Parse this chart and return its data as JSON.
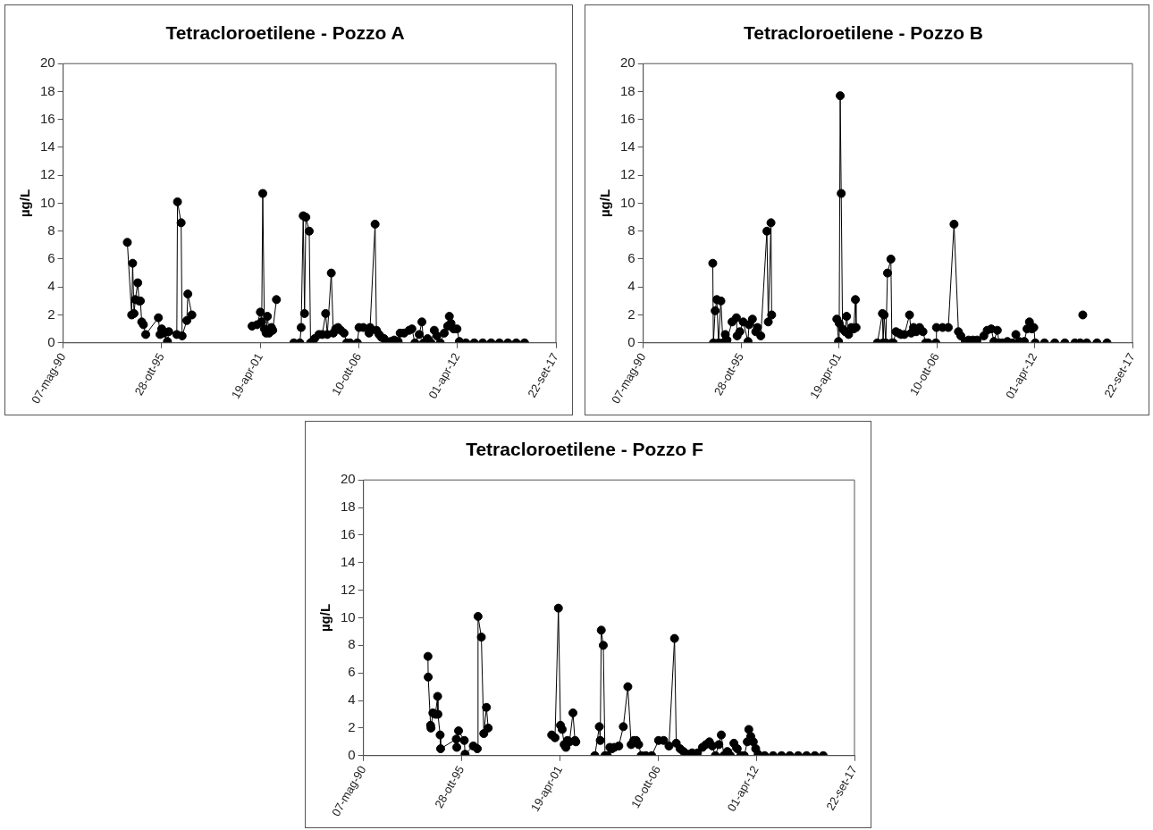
{
  "chart_data": [
    {
      "type": "line",
      "title": "Tetracloroetilene - Pozzo A",
      "ylabel": "µg/L",
      "color": "#000000",
      "marker": "circle",
      "line_style": "solid",
      "grid": false,
      "xlim": [
        "1990-05-07",
        "2017-09-22"
      ],
      "ylim": [
        0,
        20
      ],
      "yticks": [
        0,
        2,
        4,
        6,
        8,
        10,
        12,
        14,
        16,
        18,
        20
      ],
      "xticks": [
        {
          "value": "1990-05-07",
          "label": "07-mag-90"
        },
        {
          "value": "1995-10-28",
          "label": "28-ott-95"
        },
        {
          "value": "2001-04-19",
          "label": "19-apr-01"
        },
        {
          "value": "2006-10-10",
          "label": "10-ott-06"
        },
        {
          "value": "2012-04-01",
          "label": "01-apr-12"
        },
        {
          "value": "2017-09-22",
          "label": "22-set-17"
        }
      ],
      "x": [
        "1993-11-29",
        "1994-02-25",
        "1994-03-17",
        "1994-04-14",
        "1994-05-11",
        "1994-06-28",
        "1994-07-25",
        "1994-08-21",
        "1994-09-17",
        "1994-10-21",
        "1994-12-07",
        "1995-08-21",
        "1995-09-24",
        "1995-10-28",
        "1995-12-15",
        "1996-02-21",
        "1996-03-19",
        "1996-08-29",
        "1996-09-12",
        "1996-11-25",
        "1996-12-15",
        "1997-03-20",
        "1997-04-10",
        "1997-07-01",
        "1999-01-01",
        "2000-11-03",
        "2001-02-13",
        "2001-04-21",
        "2001-05-18",
        "2001-06-08",
        "2001-07-12",
        "2001-08-15",
        "2001-09-11",
        "2001-10-15",
        "2001-12-01",
        "2001-12-28",
        "2002-03-13",
        "2002-10-01",
        "2003-03-01",
        "2003-07-01",
        "2003-07-28",
        "2003-09-07",
        "2003-10-04",
        "2003-10-31",
        "2004-01-07",
        "2004-02-03",
        "2004-03-14",
        "2004-04-24",
        "2004-07-22",
        "2004-09-28",
        "2004-12-05",
        "2005-01-08",
        "2005-03-30",
        "2005-05-10",
        "2005-06-27",
        "2005-08-13",
        "2005-10-07",
        "2005-12-14",
        "2006-02-06",
        "2006-04-14",
        "2006-09-10",
        "2006-10-14",
        "2007-01-10",
        "2007-05-05",
        "2007-05-26",
        "2007-09-05",
        "2007-10-02",
        "2007-11-25",
        "2008-01-11",
        "2008-03-06",
        "2008-05-13",
        "2008-07-19",
        "2008-09-26",
        "2008-12-16",
        "2009-01-26",
        "2009-04-17",
        "2009-07-28",
        "2009-09-21",
        "2009-11-21",
        "2010-02-17",
        "2010-04-12",
        "2010-05-16",
        "2010-08-05",
        "2010-10-12",
        "2010-12-19",
        "2011-02-11",
        "2011-04-20",
        "2011-07-10",
        "2011-09-16",
        "2011-10-20",
        "2011-11-23",
        "2012-01-16",
        "2012-03-24",
        "2012-05-11",
        "2012-09-20",
        "2013-03-10",
        "2013-08-28",
        "2014-02-14",
        "2014-08-03",
        "2015-01-20",
        "2015-07-09",
        "2015-12-25"
      ],
      "values": [
        7.2,
        2.0,
        5.7,
        2.1,
        3.1,
        4.3,
        3.0,
        3.0,
        1.5,
        1.3,
        0.6,
        1.8,
        0.6,
        1.0,
        0.7,
        0.1,
        0.8,
        0.6,
        10.1,
        8.6,
        0.5,
        1.6,
        3.5,
        2.0,
        null,
        1.2,
        1.3,
        2.2,
        1.5,
        10.7,
        1.0,
        0.7,
        1.9,
        0.7,
        1.1,
        0.9,
        3.1,
        null,
        0,
        0,
        1.1,
        9.1,
        2.1,
        9.0,
        8.0,
        0,
        0.1,
        0.3,
        0.6,
        0.6,
        2.1,
        0.6,
        5.0,
        0.7,
        1.0,
        1.1,
        0.9,
        0.7,
        0,
        0,
        0,
        1.1,
        1.1,
        0.7,
        1.1,
        8.5,
        0.9,
        0.6,
        0.4,
        0.3,
        0,
        0.1,
        0.2,
        0.1,
        0.7,
        0.7,
        0.9,
        1.0,
        0,
        0.6,
        1.5,
        0,
        0.3,
        0,
        0.9,
        0.5,
        0,
        0.7,
        1.2,
        1.9,
        1.4,
        1.0,
        1.0,
        0.1,
        0,
        0,
        0,
        0,
        0,
        0,
        0,
        0
      ]
    },
    {
      "type": "line",
      "title": "Tetracloroetilene - Pozzo B",
      "ylabel": "µg/L",
      "color": "#000000",
      "marker": "circle",
      "line_style": "solid",
      "grid": false,
      "xlim": [
        "1990-05-07",
        "2017-09-22"
      ],
      "ylim": [
        0,
        20
      ],
      "yticks": [
        0,
        2,
        4,
        6,
        8,
        10,
        12,
        14,
        16,
        18,
        20
      ],
      "xticks": [
        {
          "value": "1990-05-07",
          "label": "07-mag-90"
        },
        {
          "value": "1995-10-28",
          "label": "28-ott-95"
        },
        {
          "value": "2001-04-19",
          "label": "19-apr-01"
        },
        {
          "value": "2006-10-10",
          "label": "10-ott-06"
        },
        {
          "value": "2012-04-01",
          "label": "01-apr-12"
        },
        {
          "value": "2017-09-22",
          "label": "22-set-17"
        }
      ],
      "x": [
        "1994-03-28",
        "1994-04-10",
        "1994-05-16",
        "1994-06-19",
        "1994-07-24",
        "1994-09-10",
        "1994-10-22",
        "1994-12-09",
        "1995-01-13",
        "1995-04-26",
        "1995-07-25",
        "1995-08-08",
        "1995-10-02",
        "1995-12-10",
        "1996-03-17",
        "1996-04-07",
        "1996-06-15",
        "1996-08-23",
        "1996-09-27",
        "1996-12-04",
        "1997-04-08",
        "1997-05-06",
        "1997-06-30",
        "1997-07-14",
        "1999-01-01",
        "2001-03-07",
        "2001-04-11",
        "2001-04-25",
        "2001-05-15",
        "2001-06-05",
        "2001-07-02",
        "2001-08-26",
        "2001-09-23",
        "2001-11-03",
        "2001-12-29",
        "2002-02-16",
        "2002-03-22",
        "2002-04-05",
        "2002-10-01",
        "2003-06-14",
        "2003-09-25",
        "2003-10-09",
        "2003-10-30",
        "2003-12-03",
        "2004-01-07",
        "2004-03-16",
        "2004-04-06",
        "2004-05-04",
        "2004-06-28",
        "2004-08-22",
        "2004-10-10",
        "2004-12-18",
        "2005-04-01",
        "2005-05-05",
        "2005-06-22",
        "2005-08-16",
        "2005-10-24",
        "2006-01-01",
        "2006-02-25",
        "2006-04-15",
        "2006-09-21",
        "2006-10-04",
        "2007-02-06",
        "2007-06-03",
        "2007-09-28",
        "2007-12-27",
        "2008-02-14",
        "2008-05-14",
        "2008-07-22",
        "2008-10-20",
        "2009-01-11",
        "2009-05-29",
        "2009-08-06",
        "2009-10-27",
        "2009-12-22",
        "2010-03-01",
        "2010-04-05",
        "2010-06-13",
        "2010-09-24",
        "2011-01-05",
        "2011-03-15",
        "2011-05-23",
        "2011-09-04",
        "2011-10-29",
        "2011-12-17",
        "2012-02-03",
        "2012-03-16",
        "2012-04-13",
        "2012-10-20",
        "2013-05-18",
        "2013-12-10",
        "2014-07-05",
        "2014-10-20",
        "2014-11-25",
        "2014-12-12",
        "2014-12-30",
        "2015-03-03",
        "2015-09-27",
        "2016-04-20"
      ],
      "values": [
        5.7,
        0,
        2.3,
        3.1,
        0,
        3.0,
        0,
        0.6,
        0.2,
        1.5,
        1.8,
        0.5,
        0.8,
        1.5,
        0.1,
        1.3,
        1.7,
        0.8,
        1.1,
        0.5,
        8.0,
        1.5,
        8.6,
        2.0,
        null,
        1.7,
        0.1,
        1.4,
        17.7,
        10.7,
        1.0,
        0.8,
        1.9,
        0.6,
        1.1,
        1.0,
        3.1,
        1.1,
        null,
        0,
        2.1,
        0,
        2.0,
        0,
        5.0,
        6.0,
        0,
        0,
        0.8,
        0.7,
        0.6,
        0.6,
        2.0,
        0.7,
        1.1,
        0.8,
        1.1,
        0.8,
        0,
        0,
        0,
        1.1,
        1.1,
        1.1,
        8.5,
        0.8,
        0.5,
        0.1,
        0.2,
        0.2,
        0.2,
        0.5,
        0.9,
        1.0,
        0.1,
        0.9,
        0,
        0,
        0.1,
        0,
        0.6,
        0.1,
        0.1,
        1.0,
        1.5,
        1.0,
        1.1,
        0,
        0,
        0,
        0,
        0,
        0,
        null,
        2.0,
        null,
        0,
        0,
        0
      ]
    },
    {
      "type": "line",
      "title": "Tetracloroetilene - Pozzo F",
      "ylabel": "µg/L",
      "color": "#000000",
      "marker": "circle",
      "line_style": "solid",
      "grid": false,
      "xlim": [
        "1990-05-07",
        "2017-09-22"
      ],
      "ylim": [
        0,
        20
      ],
      "yticks": [
        0,
        2,
        4,
        6,
        8,
        10,
        12,
        14,
        16,
        18,
        20
      ],
      "xticks": [
        {
          "value": "1990-05-07",
          "label": "07-mag-90"
        },
        {
          "value": "1995-10-28",
          "label": "28-ott-95"
        },
        {
          "value": "2001-04-19",
          "label": "19-apr-01"
        },
        {
          "value": "2006-10-10",
          "label": "10-ott-06"
        },
        {
          "value": "2012-04-01",
          "label": "01-apr-12"
        },
        {
          "value": "2017-09-22",
          "label": "22-set-17"
        }
      ],
      "x": [
        "1993-12-10",
        "1993-12-15",
        "1994-02-01",
        "1994-02-10",
        "1994-03-20",
        "1994-05-11",
        "1994-06-25",
        "1994-07-01",
        "1994-08-15",
        "1994-08-25",
        "1995-07-10",
        "1995-07-20",
        "1995-08-25",
        "1995-12-20",
        "1996-01-05",
        "1996-06-20",
        "1996-09-10",
        "1996-09-25",
        "1996-12-01",
        "1997-01-20",
        "1997-03-15",
        "1997-04-20",
        "1999-01-01",
        "2000-11-03",
        "2001-01-10",
        "2001-03-20",
        "2001-05-01",
        "2001-06-05",
        "2001-07-15",
        "2001-08-20",
        "2001-09-20",
        "2001-11-01",
        "2002-01-10",
        "2002-02-20",
        "2002-03-10",
        "2002-10-01",
        "2003-04-01",
        "2003-07-01",
        "2003-07-20",
        "2003-08-10",
        "2003-09-20",
        "2003-10-25",
        "2003-12-10",
        "2004-02-01",
        "2004-03-14",
        "2004-05-01",
        "2004-08-01",
        "2004-11-01",
        "2005-02-01",
        "2005-04-10",
        "2005-06-01",
        "2005-07-20",
        "2005-09-10",
        "2005-11-01",
        "2006-02-01",
        "2006-06-01",
        "2006-10-20",
        "2007-02-01",
        "2007-05-20",
        "2007-09-10",
        "2007-10-15",
        "2008-01-01",
        "2008-03-10",
        "2008-06-01",
        "2008-09-01",
        "2008-12-20",
        "2009-04-01",
        "2009-06-10",
        "2009-08-20",
        "2009-10-20",
        "2009-12-20",
        "2010-03-01",
        "2010-04-20",
        "2010-06-10",
        "2010-08-20",
        "2010-10-20",
        "2011-01-01",
        "2011-03-10",
        "2011-05-20",
        "2011-08-01",
        "2011-10-01",
        "2011-11-01",
        "2011-12-10",
        "2012-02-01",
        "2012-03-20",
        "2012-05-10",
        "2012-09-20",
        "2013-03-10",
        "2013-08-28",
        "2014-02-14",
        "2014-08-03",
        "2015-01-20",
        "2015-07-09",
        "2015-12-25"
      ],
      "values": [
        7.2,
        5.7,
        2.2,
        2.0,
        3.1,
        3.0,
        4.3,
        3.0,
        1.5,
        0.5,
        1.2,
        0.6,
        1.8,
        1.1,
        0.1,
        0.7,
        0.5,
        10.1,
        8.6,
        1.6,
        3.5,
        2.0,
        null,
        1.5,
        1.3,
        10.7,
        2.2,
        1.9,
        0.8,
        0.6,
        1.1,
        1.0,
        3.1,
        1.1,
        1.0,
        null,
        0,
        2.1,
        1.1,
        9.1,
        8.0,
        0,
        0,
        0.6,
        0.5,
        0.6,
        0.7,
        2.1,
        5.0,
        0.8,
        1.1,
        1.1,
        0.8,
        0,
        0,
        0,
        1.1,
        1.1,
        0.7,
        8.5,
        0.9,
        0.5,
        0.3,
        0.1,
        0.2,
        0.2,
        0.6,
        0.8,
        1.0,
        0.7,
        0,
        0.8,
        1.5,
        0,
        0.3,
        0,
        0.9,
        0.5,
        0,
        0,
        1.0,
        1.9,
        1.4,
        1.0,
        0.5,
        0.1,
        0,
        0,
        0,
        0,
        0,
        0,
        0,
        0
      ]
    }
  ]
}
